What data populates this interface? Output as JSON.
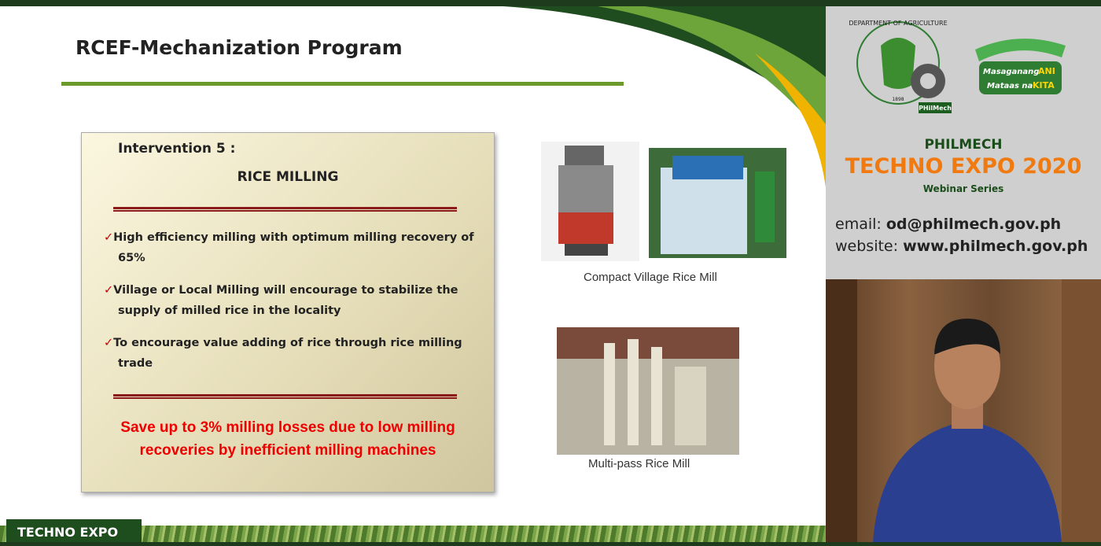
{
  "slide": {
    "title": "RCEF-Mechanization Program",
    "box": {
      "heading": "Intervention 5 :",
      "subheading": "RICE MILLING",
      "bullets": [
        "High efficiency milling with optimum milling recovery of 65%",
        "Village or Local Milling will encourage to stabilize the supply of milled rice in the locality",
        "To encourage value adding of rice through rice milling trade"
      ],
      "callout": "Save up to 3% milling losses  due to low milling recoveries  by inefficient milling machines"
    },
    "images": [
      {
        "caption": "Compact Village Rice Mill"
      },
      {
        "caption": "Multi-pass Rice Mill"
      }
    ]
  },
  "sidebar": {
    "logo": {
      "arc": "DEPARTMENT OF AGRICULTURE",
      "year": "1898",
      "badge": "PHilMech"
    },
    "slogan": {
      "line1": "Masaganang",
      "word1": "ANI",
      "line2": "Mataas na",
      "word2": "KITA"
    },
    "org": "PHILMECH",
    "event": "TECHNO EXPO 2020",
    "series": "Webinar Series",
    "contacts": [
      {
        "label": "email:",
        "value": "od@philmech.gov.ph"
      },
      {
        "label": "website:",
        "value": "www.philmech.gov.ph"
      }
    ]
  },
  "footer": {
    "tag": "TECHNO EXPO"
  }
}
